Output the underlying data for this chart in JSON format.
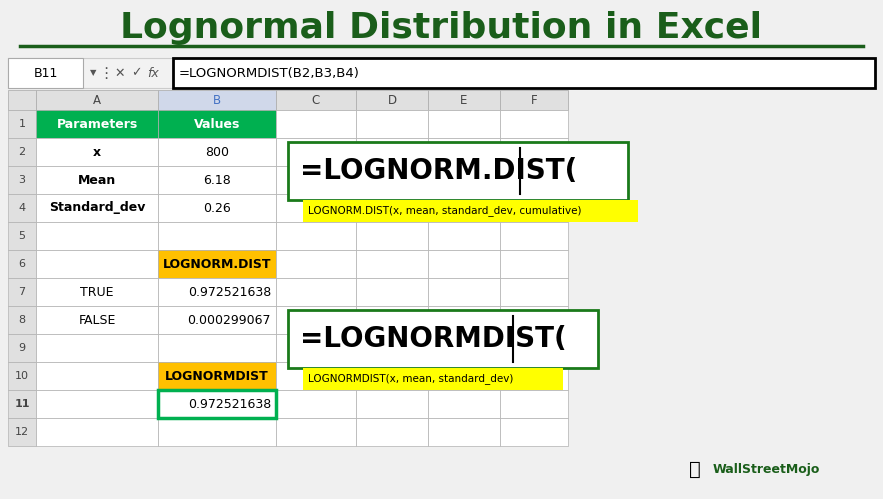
{
  "title": "Lognormal Distribution in Excel",
  "title_color": "#1a5e1a",
  "bg_color": "#f0f0f0",
  "formula_bar_text": "=LOGNORMDIST(B2,B3,B4)",
  "cell_ref": "B11",
  "tooltip1_text": "LOGNORM.DIST(x, mean, standard_dev, cumulative)",
  "tooltip2_text": "LOGNORMDIST(x, mean, standard_dev)",
  "formula1_text": "=LOGNORM.DIST(",
  "formula2_text": "=LOGNORMDIST(",
  "wsm_text": "WallStreetMojo",
  "wsm_color": "#1a5e1a",
  "header_green": "#00b050",
  "orange_color": "#ffc000",
  "col_header_bg": "#e0e0e0",
  "col_header_text": "#4472c4",
  "row_num_bg": "#e0e0e0",
  "grid_line": "#b0b0b0",
  "row_data": [
    {
      "num": "1",
      "a": "Parameters",
      "b": "Values",
      "a_bold": true,
      "b_bold": true,
      "a_bg": "#00b050",
      "b_bg": "#00b050",
      "a_fg": "white",
      "b_fg": "white",
      "b_align": "center"
    },
    {
      "num": "2",
      "a": "x",
      "b": "800",
      "a_bold": true,
      "b_bold": false,
      "a_bg": "white",
      "b_bg": "white",
      "a_fg": "black",
      "b_fg": "black",
      "b_align": "center"
    },
    {
      "num": "3",
      "a": "Mean",
      "b": "6.18",
      "a_bold": true,
      "b_bold": false,
      "a_bg": "white",
      "b_bg": "white",
      "a_fg": "black",
      "b_fg": "black",
      "b_align": "center"
    },
    {
      "num": "4",
      "a": "Standard_dev",
      "b": "0.26",
      "a_bold": true,
      "b_bold": false,
      "a_bg": "white",
      "b_bg": "white",
      "a_fg": "black",
      "b_fg": "black",
      "b_align": "center"
    },
    {
      "num": "5",
      "a": "",
      "b": "",
      "a_bold": false,
      "b_bold": false,
      "a_bg": "white",
      "b_bg": "white",
      "a_fg": "black",
      "b_fg": "black",
      "b_align": "center"
    },
    {
      "num": "6",
      "a": "",
      "b": "LOGNORM.DIST",
      "a_bold": false,
      "b_bold": true,
      "a_bg": "white",
      "b_bg": "#ffc000",
      "a_fg": "black",
      "b_fg": "black",
      "b_align": "center"
    },
    {
      "num": "7",
      "a": "TRUE",
      "b": "0.972521638",
      "a_bold": false,
      "b_bold": false,
      "a_bg": "white",
      "b_bg": "white",
      "a_fg": "black",
      "b_fg": "black",
      "b_align": "right"
    },
    {
      "num": "8",
      "a": "FALSE",
      "b": "0.000299067",
      "a_bold": false,
      "b_bold": false,
      "a_bg": "white",
      "b_bg": "white",
      "a_fg": "black",
      "b_fg": "black",
      "b_align": "right"
    },
    {
      "num": "9",
      "a": "",
      "b": "",
      "a_bold": false,
      "b_bold": false,
      "a_bg": "white",
      "b_bg": "white",
      "a_fg": "black",
      "b_fg": "black",
      "b_align": "center"
    },
    {
      "num": "10",
      "a": "",
      "b": "LOGNORMDIST",
      "a_bold": false,
      "b_bold": true,
      "a_bg": "white",
      "b_bg": "#ffc000",
      "a_fg": "black",
      "b_fg": "black",
      "b_align": "center"
    },
    {
      "num": "11",
      "a": "",
      "b": "0.972521638",
      "a_bold": false,
      "b_bold": false,
      "a_bg": "white",
      "b_bg": "white",
      "a_fg": "black",
      "b_fg": "black",
      "b_align": "right"
    },
    {
      "num": "12",
      "a": "",
      "b": "",
      "a_bold": false,
      "b_bold": false,
      "a_bg": "white",
      "b_bg": "white",
      "a_fg": "black",
      "b_fg": "black",
      "b_align": "center"
    }
  ]
}
